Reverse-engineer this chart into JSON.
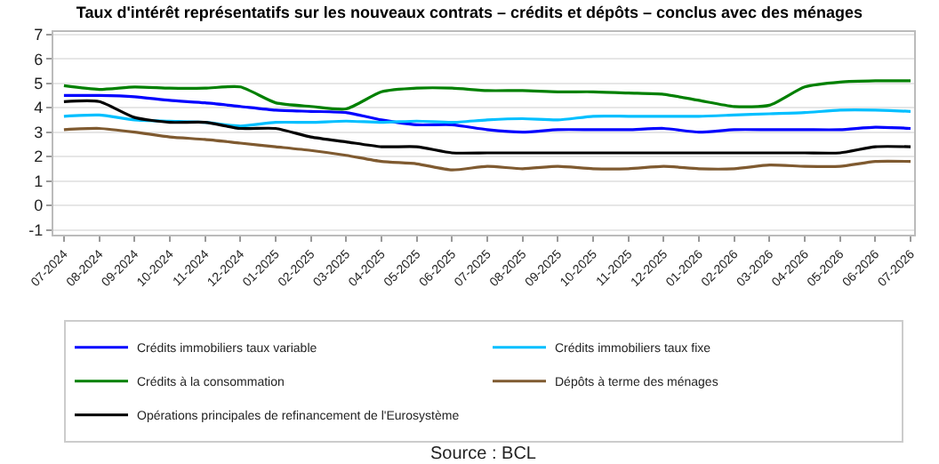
{
  "chart_data": {
    "type": "line",
    "title": "Taux d'intérêt représentatifs sur les nouveaux contrats – crédits et dépôts – conclus avec des ménages",
    "categories": [
      "07-2024",
      "08-2024",
      "09-2024",
      "10-2024",
      "11-2024",
      "12-2024",
      "01-2025",
      "02-2025",
      "03-2025",
      "04-2025",
      "05-2025",
      "06-2025",
      "07-2025",
      "08-2025",
      "09-2025",
      "10-2025",
      "11-2025",
      "12-2025",
      "01-2026",
      "02-2026",
      "03-2026",
      "04-2026",
      "05-2026",
      "06-2026",
      "07-2026"
    ],
    "series": [
      {
        "name": "Crédits immobiliers taux variable",
        "color": "#0000ff",
        "values": [
          4.5,
          4.5,
          4.45,
          4.3,
          4.2,
          4.05,
          3.9,
          3.85,
          3.8,
          3.5,
          3.3,
          3.3,
          3.1,
          3.0,
          3.1,
          3.1,
          3.1,
          3.15,
          3.0,
          3.1,
          3.1,
          3.1,
          3.1,
          3.2,
          3.15
        ]
      },
      {
        "name": "Crédits immobiliers taux fixe",
        "color": "#00bfff",
        "values": [
          3.65,
          3.7,
          3.5,
          3.45,
          3.4,
          3.25,
          3.4,
          3.4,
          3.45,
          3.4,
          3.45,
          3.4,
          3.5,
          3.55,
          3.5,
          3.65,
          3.65,
          3.65,
          3.65,
          3.7,
          3.75,
          3.8,
          3.9,
          3.9,
          3.85
        ]
      },
      {
        "name": "Crédits à la consommation",
        "color": "#008000",
        "values": [
          4.9,
          4.75,
          4.85,
          4.8,
          4.8,
          4.85,
          4.2,
          4.05,
          3.95,
          4.65,
          4.8,
          4.8,
          4.7,
          4.7,
          4.65,
          4.65,
          4.6,
          4.55,
          4.3,
          4.05,
          4.1,
          4.85,
          5.05,
          5.1,
          5.1
        ]
      },
      {
        "name": "Dépôts à terme des ménages",
        "color": "#7f5a30",
        "values": [
          3.1,
          3.15,
          3.0,
          2.8,
          2.7,
          2.55,
          2.4,
          2.25,
          2.05,
          1.8,
          1.7,
          1.45,
          1.6,
          1.5,
          1.6,
          1.5,
          1.5,
          1.6,
          1.5,
          1.5,
          1.65,
          1.6,
          1.6,
          1.8,
          1.8
        ]
      },
      {
        "name": "Opérations principales de refinancement de l'Eurosystème",
        "color": "#000000",
        "values": [
          4.25,
          4.25,
          3.6,
          3.4,
          3.4,
          3.15,
          3.15,
          2.8,
          2.6,
          2.4,
          2.4,
          2.15,
          2.15,
          2.15,
          2.15,
          2.15,
          2.15,
          2.15,
          2.15,
          2.15,
          2.15,
          2.15,
          2.15,
          2.4,
          2.4
        ]
      }
    ],
    "ylim": [
      -1.2,
      7.1
    ],
    "yticks": [
      -1,
      0,
      1,
      2,
      3,
      4,
      5,
      6,
      7
    ],
    "grid": "y",
    "legend": "bottom",
    "line_style": "solid",
    "marker": "none",
    "annotations": [
      "Source : BCL"
    ]
  }
}
